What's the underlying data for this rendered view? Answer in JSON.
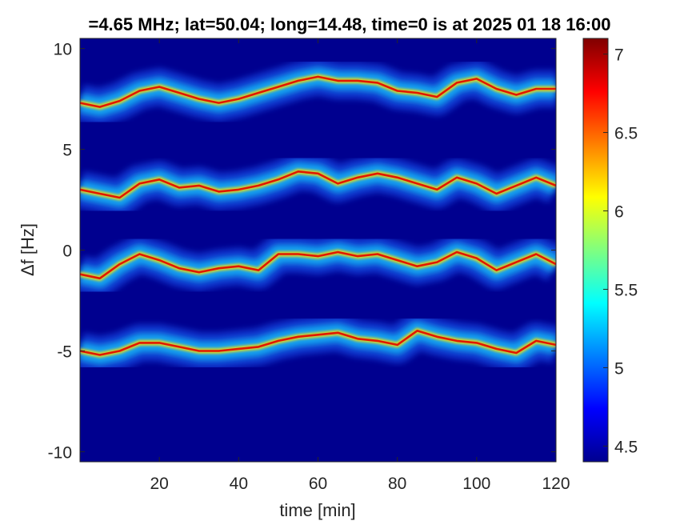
{
  "chart_data": {
    "type": "heatmap",
    "title": "=4.65 MHz;  lat=50.04; long=14.48, time=0 is at 2025 01 18 16:00",
    "xlabel": "time [min]",
    "ylabel": "Δf [Hz]",
    "xlim": [
      0,
      120
    ],
    "ylim": [
      -10.5,
      10.5
    ],
    "x_ticks": [
      20,
      40,
      60,
      80,
      100,
      120
    ],
    "x_tick_labels": [
      "20",
      "40",
      "60",
      "80",
      "100",
      "120"
    ],
    "y_ticks": [
      -10,
      -5,
      0,
      5,
      10
    ],
    "y_tick_labels": [
      "-10",
      "-5",
      "0",
      "5",
      "10"
    ],
    "colorbar": {
      "colormap": "jet",
      "range": [
        4.4,
        7.1
      ],
      "ticks": [
        4.5,
        5,
        5.5,
        6,
        6.5,
        7
      ],
      "tick_labels": [
        "4.5",
        "5",
        "5.5",
        "6",
        "6.5",
        "7"
      ]
    },
    "background_color": "#00008f",
    "series": [
      {
        "x": [
          0,
          5,
          10,
          15,
          20,
          25,
          30,
          35,
          40,
          45,
          50,
          55,
          60,
          65,
          70,
          75,
          80,
          85,
          90,
          95,
          100,
          105,
          110,
          115,
          120
        ],
        "y": [
          7.3,
          7.1,
          7.4,
          7.9,
          8.1,
          7.8,
          7.5,
          7.3,
          7.5,
          7.8,
          8.1,
          8.4,
          8.6,
          8.4,
          8.4,
          8.3,
          7.9,
          7.8,
          7.6,
          8.3,
          8.5,
          8.0,
          7.7,
          8.0,
          8.0
        ]
      },
      {
        "x": [
          0,
          5,
          10,
          15,
          20,
          25,
          30,
          35,
          40,
          45,
          50,
          55,
          60,
          65,
          70,
          75,
          80,
          85,
          90,
          95,
          100,
          105,
          110,
          115,
          120
        ],
        "y": [
          3.0,
          2.8,
          2.6,
          3.3,
          3.5,
          3.1,
          3.2,
          2.9,
          3.0,
          3.2,
          3.5,
          3.9,
          3.8,
          3.3,
          3.6,
          3.8,
          3.6,
          3.3,
          3.0,
          3.6,
          3.3,
          2.8,
          3.2,
          3.6,
          3.2
        ]
      },
      {
        "x": [
          0,
          5,
          10,
          15,
          20,
          25,
          30,
          35,
          40,
          45,
          50,
          55,
          60,
          65,
          70,
          75,
          80,
          85,
          90,
          95,
          100,
          105,
          110,
          115,
          120
        ],
        "y": [
          -1.2,
          -1.4,
          -0.7,
          -0.2,
          -0.5,
          -0.9,
          -1.1,
          -0.9,
          -0.8,
          -1.0,
          -0.2,
          -0.2,
          -0.3,
          -0.1,
          -0.3,
          -0.2,
          -0.5,
          -0.8,
          -0.6,
          -0.1,
          -0.4,
          -1.0,
          -0.6,
          -0.2,
          -0.7
        ]
      },
      {
        "x": [
          0,
          5,
          10,
          15,
          20,
          25,
          30,
          35,
          40,
          45,
          50,
          55,
          60,
          65,
          70,
          75,
          80,
          85,
          90,
          95,
          100,
          105,
          110,
          115,
          120
        ],
        "y": [
          -5.0,
          -5.2,
          -5.0,
          -4.6,
          -4.6,
          -4.8,
          -5.0,
          -5.0,
          -4.9,
          -4.8,
          -4.5,
          -4.3,
          -4.2,
          -4.1,
          -4.4,
          -4.5,
          -4.7,
          -4.0,
          -4.3,
          -4.5,
          -4.6,
          -4.9,
          -5.1,
          -4.5,
          -4.7
        ]
      }
    ]
  }
}
